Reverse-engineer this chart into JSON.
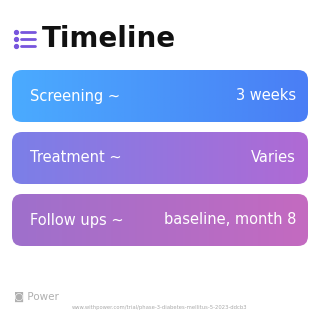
{
  "title": "Timeline",
  "background_color": "#ffffff",
  "rows": [
    {
      "label_left": "Screening ~",
      "label_right": "3 weeks",
      "color_left": "#4aabff",
      "color_right": "#4a7ef5"
    },
    {
      "label_left": "Treatment ~",
      "label_right": "Varies",
      "color_left": "#7b7fe8",
      "color_right": "#b06ad4"
    },
    {
      "label_left": "Follow ups ~",
      "label_right": "baseline, month 8",
      "color_left": "#9e70cc",
      "color_right": "#c46ac0"
    }
  ],
  "icon_dot_color": "#7755dd",
  "icon_line_color": "#7755dd",
  "footer_logo_color": "#b0b0b0",
  "footer_text": "www.withpower.com/trial/phase-3-diabetes-mellitus-5-2023-ddcb3",
  "footer_text_color": "#aaaaaa",
  "title_fontsize": 20,
  "label_fontsize": 10.5,
  "row_text_color": "#ffffff",
  "title_color": "#111111"
}
